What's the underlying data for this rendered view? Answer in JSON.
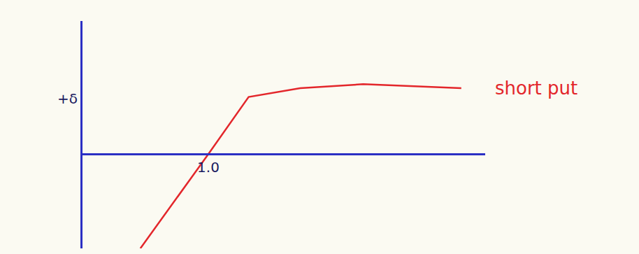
{
  "chart_data": {
    "type": "line",
    "x": [
      0.46,
      1.0,
      1.32,
      1.73,
      2.23,
      3.01
    ],
    "series": [
      {
        "name": "short put",
        "color": "#e3262b",
        "values": [
          -1.7,
          0,
          1.03,
          1.19,
          1.26,
          1.19
        ]
      }
    ],
    "xlim": [
      0,
      3.2
    ],
    "xticks": [
      {
        "value": 1.0,
        "label": "1.0"
      }
    ],
    "ylim": [
      -1.7,
      2.4
    ],
    "yticks": [
      {
        "value": 1,
        "label": "+δ"
      }
    ],
    "grid": false
  }
}
